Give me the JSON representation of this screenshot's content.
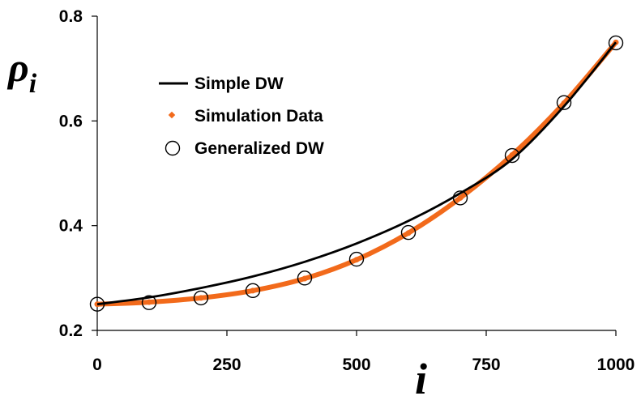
{
  "chart_data": {
    "type": "scatter",
    "xlabel": "i",
    "ylabel": "ρ",
    "ylabel_sub": "i",
    "xlim": [
      0,
      1000
    ],
    "ylim": [
      0.2,
      0.8
    ],
    "x_ticks": [
      0,
      250,
      500,
      750,
      1000
    ],
    "x_tick_labels": [
      "0",
      "250",
      "500",
      "750",
      "1000"
    ],
    "y_ticks": [
      0.2,
      0.4,
      0.6,
      0.8
    ],
    "y_tick_labels": [
      "0.2",
      "0.4",
      "0.6",
      "0.8"
    ],
    "grid": false,
    "legend_position": "top-left",
    "series": [
      {
        "name": "Simple DW",
        "kind": "line",
        "color": "#000000",
        "x": [
          0,
          100,
          200,
          300,
          400,
          500,
          600,
          700,
          800,
          900,
          1000
        ],
        "y": [
          0.25,
          0.263,
          0.281,
          0.303,
          0.331,
          0.366,
          0.409,
          0.462,
          0.527,
          0.628,
          0.75
        ]
      },
      {
        "name": "Simulation Data",
        "kind": "dots",
        "color": "#f26a1b",
        "x": [
          0,
          100,
          200,
          300,
          400,
          500,
          600,
          700,
          800,
          900,
          1000
        ],
        "y": [
          0.25,
          0.254,
          0.262,
          0.276,
          0.299,
          0.335,
          0.386,
          0.453,
          0.535,
          0.634,
          0.75
        ]
      },
      {
        "name": "Generalized DW",
        "kind": "circles",
        "color": "#000000",
        "x": [
          0,
          100,
          200,
          300,
          400,
          500,
          600,
          700,
          800,
          900,
          1000
        ],
        "y": [
          0.25,
          0.253,
          0.262,
          0.276,
          0.3,
          0.336,
          0.387,
          0.453,
          0.534,
          0.635,
          0.749
        ]
      }
    ]
  }
}
